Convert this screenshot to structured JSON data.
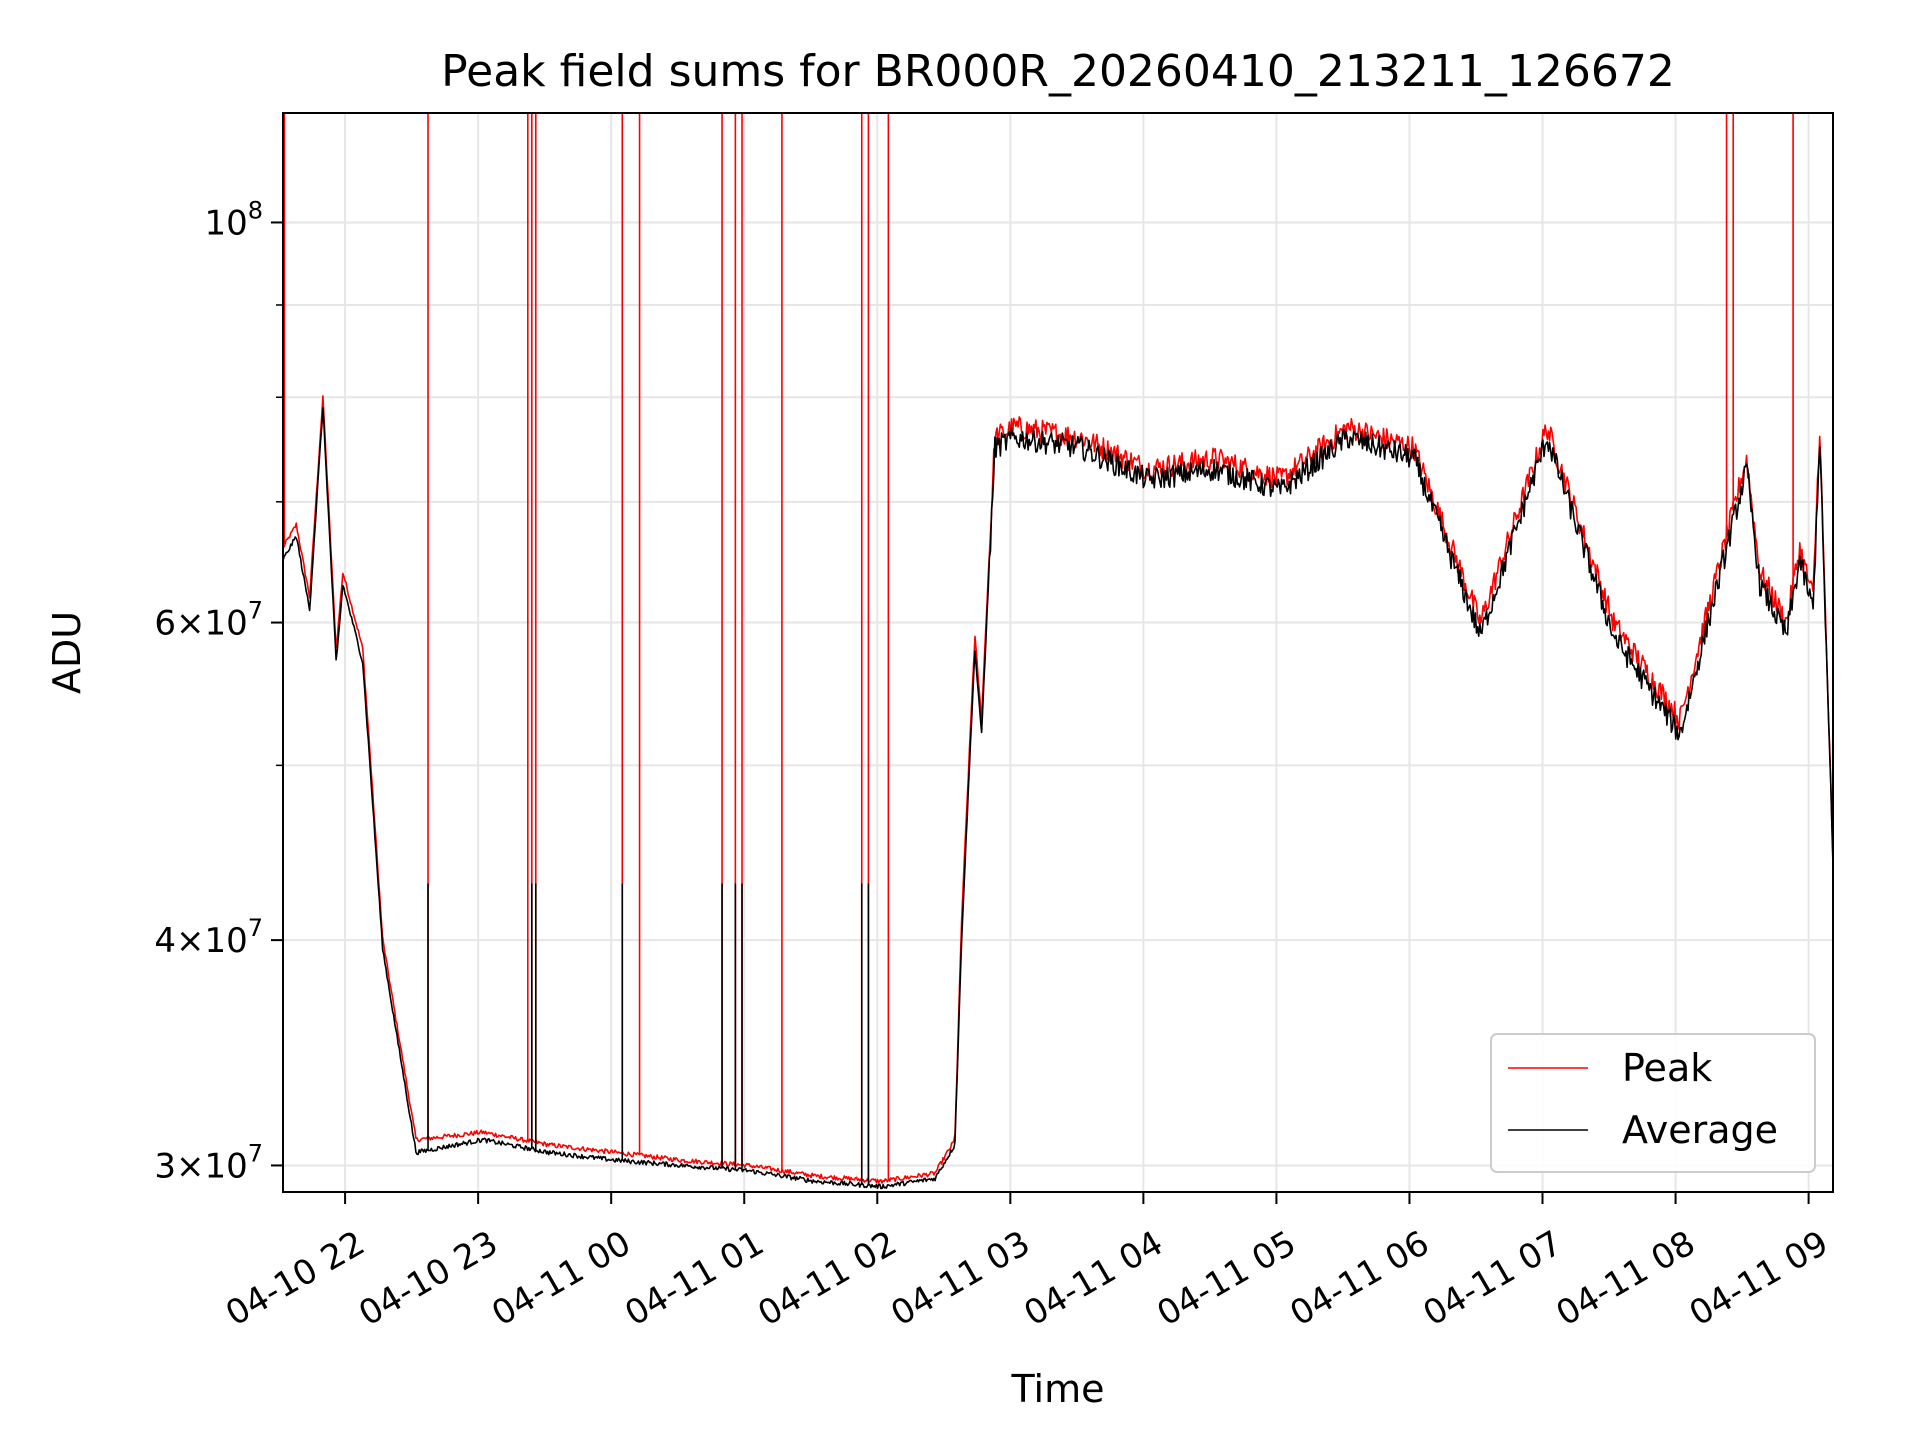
{
  "chart_data": {
    "type": "line",
    "title": "Peak field sums for BR000R_20260410_213211_126672",
    "xlabel": "Time",
    "ylabel": "ADU",
    "x_tick_labels": [
      "04-10 22",
      "04-10 23",
      "04-11 00",
      "04-11 01",
      "04-11 02",
      "04-11 03",
      "04-11 04",
      "04-11 05",
      "04-11 06",
      "04-11 07",
      "04-11 08",
      "04-11 09"
    ],
    "y_tick_labels": [
      {
        "value": 30000000,
        "mantissa": "3",
        "exponent": "7"
      },
      {
        "value": 40000000,
        "mantissa": "4",
        "exponent": "7"
      },
      {
        "value": 60000000,
        "mantissa": "6",
        "exponent": "7"
      },
      {
        "value": 100000000,
        "mantissa": "",
        "exponent": "8"
      }
    ],
    "y_scale": "log",
    "ylim": [
      29000000,
      115000000
    ],
    "xlim": [
      "2026-04-10 21:32",
      "2026-04-11 09:11"
    ],
    "grid": true,
    "legend_position": "lower-right",
    "series": [
      {
        "name": "Peak",
        "color": "#ff0000",
        "x_hours": [
          0,
          0.1,
          0.2,
          0.3,
          0.4,
          0.45,
          0.6,
          0.75,
          1.0,
          1.5,
          2.0,
          2.5,
          3.0,
          3.5,
          4.0,
          4.5,
          4.9,
          5.05,
          5.1,
          5.2,
          5.25,
          5.35,
          5.5,
          6.0,
          6.5,
          7.0,
          7.5,
          8.0,
          8.5,
          9.0,
          9.5,
          10.0,
          10.5,
          11.0,
          11.1,
          11.2,
          11.3,
          11.4,
          11.5,
          11.55,
          11.65
        ],
        "values": [
          66000000,
          68000000,
          62000000,
          80000000,
          58000000,
          64000000,
          58000000,
          40000000,
          31000000,
          31300000,
          30800000,
          30500000,
          30200000,
          30000000,
          29600000,
          29400000,
          29700000,
          31000000,
          41000000,
          59000000,
          53000000,
          76000000,
          77000000,
          76000000,
          73000000,
          74000000,
          72000000,
          77000000,
          75000000,
          60000000,
          77000000,
          60000000,
          53000000,
          74000000,
          64000000,
          62000000,
          60000000,
          66000000,
          62000000,
          77000000,
          44000000
        ],
        "spike_hours": [
          0.01,
          1.09,
          1.84,
          1.87,
          1.9,
          2.55,
          2.68,
          3.3,
          3.4,
          3.45,
          3.75,
          4.35,
          4.4,
          4.55,
          10.85,
          10.9,
          11.35
        ],
        "spike_value": 115000000
      },
      {
        "name": "Average",
        "color": "#000000",
        "x_hours": [
          0,
          0.1,
          0.2,
          0.3,
          0.4,
          0.45,
          0.6,
          0.75,
          1.0,
          1.5,
          2.0,
          2.5,
          3.0,
          3.5,
          4.0,
          4.5,
          4.9,
          5.05,
          5.1,
          5.2,
          5.25,
          5.35,
          5.5,
          6.0,
          6.5,
          7.0,
          7.5,
          8.0,
          8.5,
          9.0,
          9.5,
          10.0,
          10.5,
          11.0,
          11.1,
          11.2,
          11.3,
          11.4,
          11.5,
          11.55,
          11.65
        ],
        "values": [
          65000000,
          67000000,
          61000000,
          79000000,
          57000000,
          63000000,
          57000000,
          39500000,
          30500000,
          31000000,
          30500000,
          30200000,
          30000000,
          29800000,
          29400000,
          29200000,
          29500000,
          30800000,
          40000000,
          58000000,
          52000000,
          75000000,
          76000000,
          75000000,
          72000000,
          73000000,
          71000000,
          76000000,
          74000000,
          59000000,
          76000000,
          59000000,
          52000000,
          73000000,
          63000000,
          61000000,
          59000000,
          65000000,
          61000000,
          76000000,
          44000000
        ],
        "spike_hours": [
          1.09,
          1.87,
          1.9,
          2.55,
          3.3,
          3.4,
          3.45,
          4.35,
          4.4
        ],
        "spike_value": 43000000
      }
    ]
  }
}
